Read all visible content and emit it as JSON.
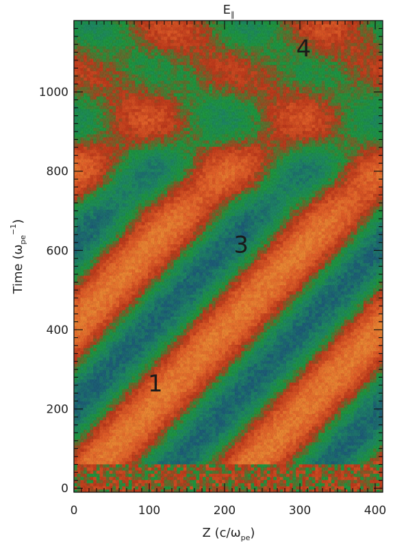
{
  "chart_data": {
    "type": "heatmap",
    "title": "E",
    "title_subscript": "∥",
    "xlabel": "Z (c/ω",
    "xlabel_sub": "pe",
    "xlabel_end": ")",
    "ylabel": "Time (ω",
    "ylabel_sub": "pe",
    "ylabel_sup": "−1",
    "ylabel_end": ")",
    "xlim": [
      0,
      410
    ],
    "ylim": [
      -10,
      1180
    ],
    "x_ticks": [
      0,
      100,
      200,
      300,
      400
    ],
    "y_ticks": [
      0,
      200,
      400,
      600,
      800,
      1000
    ],
    "x_tick_labels": [
      "0",
      "100",
      "200",
      "300",
      "400"
    ],
    "y_tick_labels": [
      "0",
      "200",
      "400",
      "600",
      "800",
      "1000"
    ],
    "grid": false,
    "colormap": [
      "#1e5f7a",
      "#1f8a66",
      "#1f9a3f",
      "#c13a1c",
      "#e6612a",
      "#f08a35"
    ],
    "stripe_period_z": 205,
    "stripe_speed_z_per_time": 0.5,
    "region_labels": [
      {
        "text": "1",
        "z": 108,
        "t": 265
      },
      {
        "text": "3",
        "z": 222,
        "t": 615
      },
      {
        "text": "4",
        "z": 305,
        "t": 1110
      }
    ]
  }
}
